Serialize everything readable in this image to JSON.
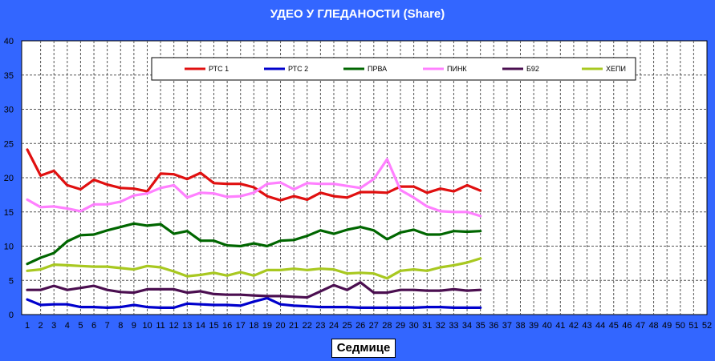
{
  "chart_data": {
    "type": "line",
    "title": "УДЕО У ГЛЕДАНОСТИ (Share)",
    "xlabel": "Седмице",
    "ylabel": "",
    "ylim": [
      0,
      40
    ],
    "xlim": [
      1,
      52
    ],
    "y_ticks": [
      "0",
      "5",
      "10",
      "15",
      "20",
      "25",
      "30",
      "35",
      "40"
    ],
    "x_ticks": [
      "1",
      "2",
      "3",
      "4",
      "5",
      "6",
      "7",
      "8",
      "9",
      "10",
      "11",
      "12",
      "13",
      "14",
      "15",
      "16",
      "17",
      "18",
      "19",
      "20",
      "21",
      "22",
      "23",
      "24",
      "25",
      "26",
      "27",
      "28",
      "29",
      "30",
      "31",
      "32",
      "33",
      "34",
      "35",
      "36",
      "37",
      "38",
      "39",
      "40",
      "41",
      "42",
      "43",
      "44",
      "45",
      "46",
      "47",
      "48",
      "49",
      "50",
      "51",
      "52"
    ],
    "grid": true,
    "legend_position": "top",
    "x": [
      1,
      2,
      3,
      4,
      5,
      6,
      7,
      8,
      9,
      10,
      11,
      12,
      13,
      14,
      15,
      16,
      17,
      18,
      19,
      20,
      21,
      22,
      23,
      24,
      25,
      26,
      27,
      28,
      29,
      30,
      31,
      32,
      33,
      34,
      35
    ],
    "series": [
      {
        "name": "РТС 1",
        "color": "#e01010",
        "values": [
          24.1,
          20.3,
          21.0,
          18.9,
          18.3,
          19.7,
          19.0,
          18.5,
          18.4,
          18.0,
          20.6,
          20.5,
          19.8,
          20.7,
          19.2,
          19.1,
          19.1,
          18.6,
          17.3,
          16.7,
          17.3,
          16.8,
          17.8,
          17.3,
          17.1,
          17.9,
          17.9,
          17.8,
          18.7,
          18.7,
          17.8,
          18.4,
          18.0,
          18.9,
          18.1
        ]
      },
      {
        "name": "РТС 2",
        "color": "#0000cc",
        "values": [
          2.2,
          1.4,
          1.5,
          1.5,
          1.1,
          1.1,
          1.0,
          1.1,
          1.4,
          1.1,
          1.0,
          1.0,
          1.6,
          1.5,
          1.4,
          1.4,
          1.3,
          1.9,
          2.4,
          1.5,
          1.3,
          1.2,
          1.1,
          1.1,
          1.1,
          1.0,
          1.0,
          1.0,
          1.0,
          1.0,
          1.1,
          1.1,
          1.0,
          1.0,
          1.0
        ]
      },
      {
        "name": "ПРВА",
        "color": "#006600",
        "values": [
          7.4,
          8.3,
          9.0,
          10.7,
          11.6,
          11.7,
          12.3,
          12.8,
          13.3,
          13.0,
          13.2,
          11.8,
          12.2,
          10.8,
          10.8,
          10.1,
          10.0,
          10.4,
          10.0,
          10.8,
          10.9,
          11.5,
          12.3,
          11.8,
          12.4,
          12.8,
          12.3,
          11.0,
          12.0,
          12.4,
          11.7,
          11.7,
          12.2,
          12.1,
          12.2
        ]
      },
      {
        "name": "ПИНК",
        "color": "#ff80ff",
        "values": [
          16.8,
          15.7,
          15.8,
          15.5,
          15.1,
          16.1,
          16.1,
          16.5,
          17.4,
          17.7,
          18.5,
          18.9,
          17.1,
          17.8,
          17.7,
          17.2,
          17.3,
          17.8,
          19.1,
          19.3,
          18.3,
          19.2,
          19.1,
          19.1,
          18.8,
          18.5,
          19.8,
          22.7,
          18.2,
          17.1,
          15.8,
          15.1,
          15.0,
          15.0,
          14.4
        ]
      },
      {
        "name": "Б92",
        "color": "#4b0f50",
        "values": [
          3.6,
          3.6,
          4.2,
          3.6,
          3.9,
          4.2,
          3.6,
          3.3,
          3.2,
          3.7,
          3.7,
          3.7,
          3.2,
          3.4,
          3.0,
          2.9,
          2.9,
          2.8,
          2.7,
          2.7,
          2.6,
          2.5,
          3.4,
          4.3,
          3.6,
          4.7,
          3.2,
          3.2,
          3.6,
          3.6,
          3.5,
          3.5,
          3.7,
          3.5,
          3.6
        ]
      },
      {
        "name": "ХЕПИ",
        "color": "#a8c820",
        "values": [
          6.4,
          6.6,
          7.3,
          7.2,
          7.1,
          7.0,
          7.0,
          6.8,
          6.6,
          7.1,
          6.9,
          6.3,
          5.6,
          5.8,
          6.1,
          5.7,
          6.2,
          5.7,
          6.5,
          6.5,
          6.7,
          6.5,
          6.7,
          6.6,
          6.0,
          6.1,
          6.0,
          5.3,
          6.4,
          6.6,
          6.4,
          6.9,
          7.2,
          7.6,
          8.2
        ]
      }
    ]
  }
}
